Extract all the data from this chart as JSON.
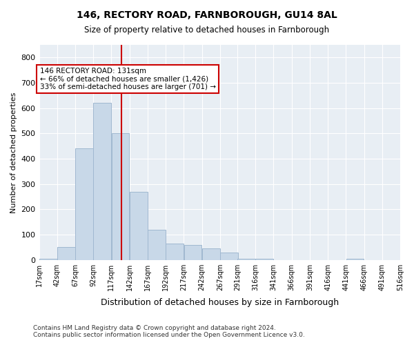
{
  "title_line1": "146, RECTORY ROAD, FARNBOROUGH, GU14 8AL",
  "title_line2": "Size of property relative to detached houses in Farnborough",
  "xlabel": "Distribution of detached houses by size in Farnborough",
  "ylabel": "Number of detached properties",
  "bar_color": "#c8d8e8",
  "bar_edge_color": "#a0b8d0",
  "bg_color": "#e8eef4",
  "grid_color": "#ffffff",
  "annotation_line_color": "#cc0000",
  "annotation_box_color": "#cc0000",
  "annotation_text": "146 RECTORY ROAD: 131sqm\n← 66% of detached houses are smaller (1,426)\n33% of semi-detached houses are larger (701) →",
  "property_size": 131,
  "bin_edges": [
    17,
    42,
    67,
    92,
    117,
    142,
    167,
    192,
    217,
    242,
    267,
    291,
    316,
    341,
    366,
    391,
    416,
    441,
    466,
    491,
    516
  ],
  "bin_labels": [
    "17sqm",
    "42sqm",
    "67sqm",
    "92sqm",
    "117sqm",
    "142sqm",
    "167sqm",
    "192sqm",
    "217sqm",
    "242sqm",
    "267sqm",
    "291sqm",
    "316sqm",
    "341sqm",
    "366sqm",
    "391sqm",
    "416sqm",
    "441sqm",
    "466sqm",
    "491sqm",
    "516sqm"
  ],
  "bar_heights": [
    5,
    50,
    440,
    620,
    500,
    270,
    120,
    65,
    60,
    45,
    30,
    5,
    5,
    0,
    0,
    0,
    0,
    5,
    0,
    0
  ],
  "ylim": [
    0,
    850
  ],
  "yticks": [
    0,
    100,
    200,
    300,
    400,
    500,
    600,
    700,
    800
  ],
  "footnote": "Contains HM Land Registry data © Crown copyright and database right 2024.\nContains public sector information licensed under the Open Government Licence v3.0."
}
